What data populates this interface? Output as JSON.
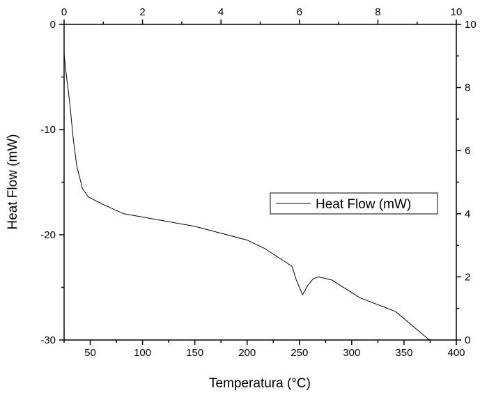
{
  "chart_data": {
    "type": "line",
    "xlabel": "Temperatura (°C)",
    "ylabel": "Heat Flow (mW)",
    "xlim": [
      25,
      400
    ],
    "ylim": [
      -30,
      0
    ],
    "x_ticks": [
      50,
      100,
      150,
      200,
      250,
      300,
      350,
      400
    ],
    "y_ticks": [
      0,
      -10,
      -20,
      -30
    ],
    "top_axis": {
      "range": [
        0,
        10
      ],
      "ticks": [
        0,
        2,
        4,
        6,
        8,
        10
      ]
    },
    "right_axis": {
      "range": [
        0,
        10
      ],
      "ticks": [
        0,
        2,
        4,
        6,
        8,
        10
      ]
    },
    "grid": false,
    "legend_position": "center-right",
    "series": [
      {
        "name": "Heat Flow (mW)",
        "color": "#000000",
        "x": [
          25,
          26.5,
          30.3,
          33.6,
          37,
          42.5,
          48,
          62,
          82,
          99,
          150,
          200,
          216.6,
          243,
          247,
          253,
          258,
          263,
          268,
          281,
          308,
          342,
          373,
          375
        ],
        "y": [
          -2.8,
          -4.3,
          -7.4,
          -10.7,
          -13.4,
          -15.6,
          -16.4,
          -17.1,
          -18.0,
          -18.3,
          -19.2,
          -20.5,
          -21.3,
          -23.0,
          -24.3,
          -25.7,
          -24.8,
          -24.2,
          -24.0,
          -24.3,
          -26.0,
          -27.3,
          -29.9,
          -30
        ]
      }
    ]
  }
}
